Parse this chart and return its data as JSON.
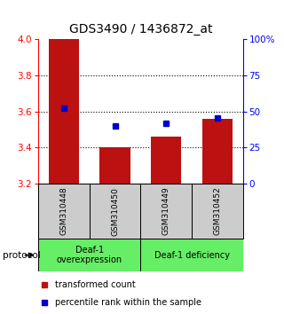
{
  "title": "GDS3490 / 1436872_at",
  "samples": [
    "GSM310448",
    "GSM310450",
    "GSM310449",
    "GSM310452"
  ],
  "bar_values": [
    4.0,
    3.4,
    3.46,
    3.56
  ],
  "percentile_values": [
    3.62,
    3.52,
    3.535,
    3.565
  ],
  "ymin": 3.2,
  "ymax": 4.0,
  "yticks_left": [
    3.2,
    3.4,
    3.6,
    3.8,
    4.0
  ],
  "yticks_right": [
    0,
    25,
    50,
    75,
    100
  ],
  "bar_color": "#bb1111",
  "percentile_color": "#0000cc",
  "bar_bottom": 3.2,
  "group1_label": "Deaf-1\noverexpression",
  "group2_label": "Deaf-1 deficiency",
  "group_color": "#66ee66",
  "sample_box_color": "#cccccc",
  "protocol_label": "protocol",
  "legend1": "transformed count",
  "legend2": "percentile rank within the sample"
}
